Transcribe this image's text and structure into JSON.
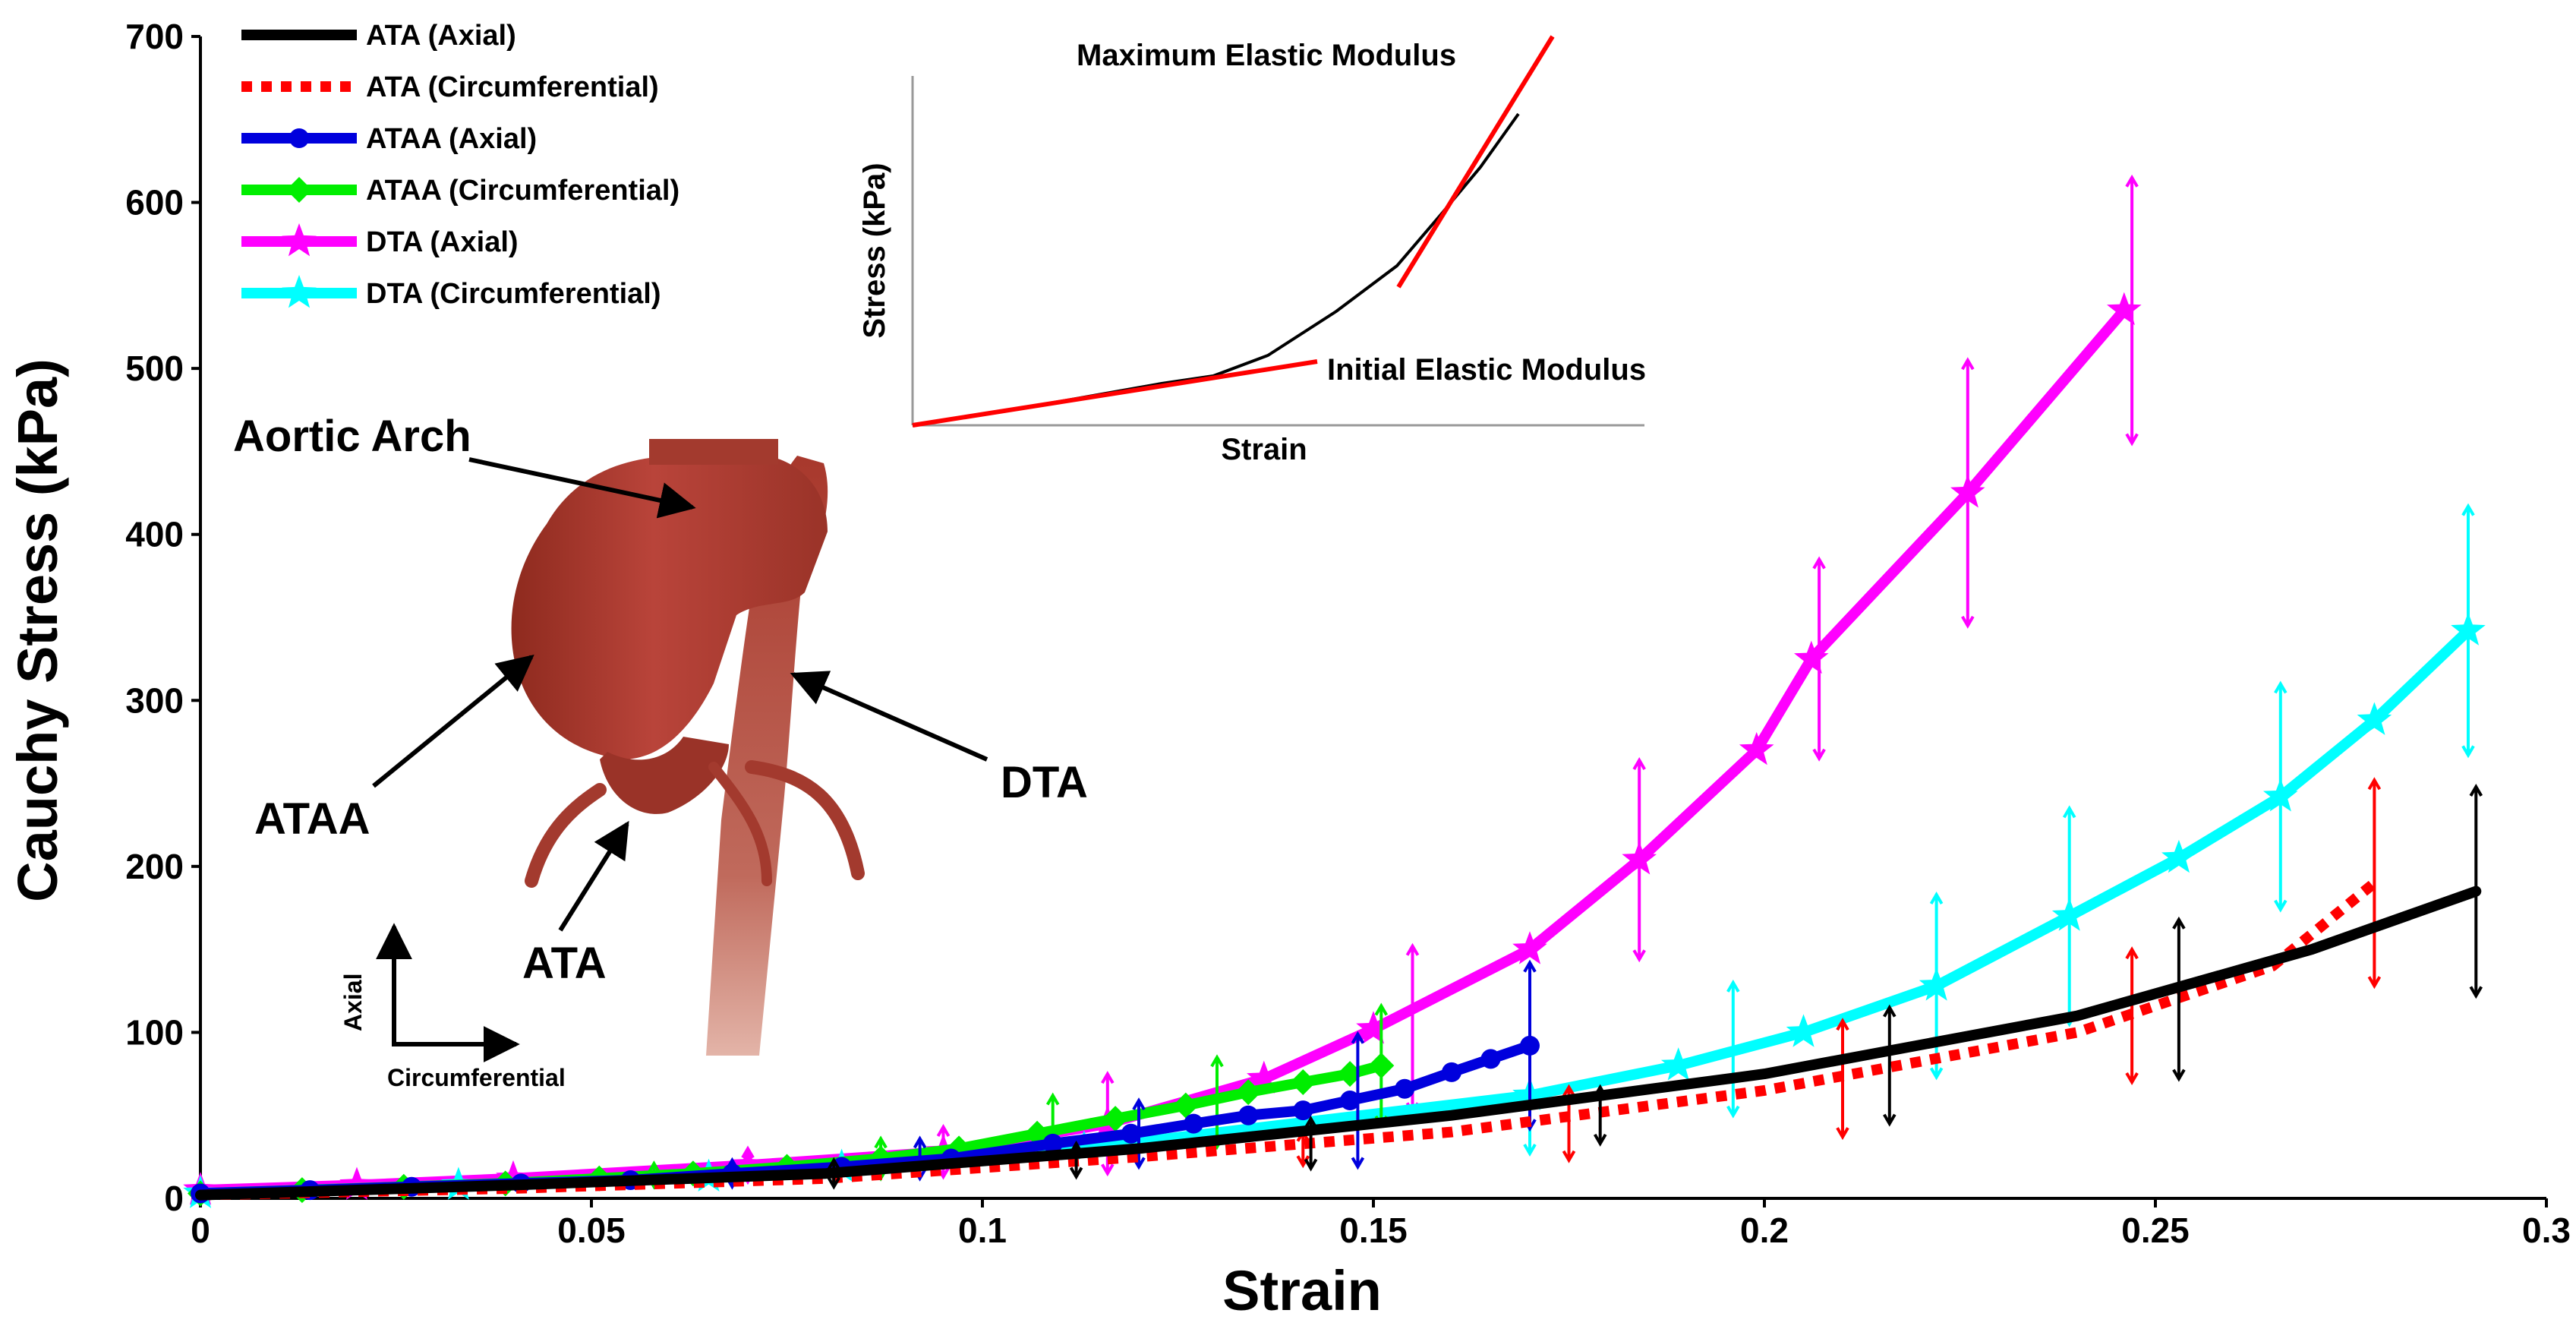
{
  "chart_data": {
    "type": "line",
    "xlabel": "Strain",
    "ylabel": "Cauchy Stress (kPa)",
    "xlim": [
      0,
      0.3
    ],
    "ylim": [
      0,
      700
    ],
    "x_ticks": [
      "0",
      "0.05",
      "0.1",
      "0.15",
      "0.2",
      "0.25",
      "0.3"
    ],
    "y_ticks": [
      "0",
      "100",
      "200",
      "300",
      "400",
      "500",
      "600",
      "700"
    ],
    "legend_position": "top-left",
    "series": [
      {
        "name": "ATA (Axial)",
        "color": "#000000",
        "style": "solid",
        "marker": "none",
        "x": [
          0,
          0.04,
          0.08,
          0.12,
          0.16,
          0.2,
          0.24,
          0.27,
          0.291
        ],
        "y": [
          2,
          8,
          15,
          30,
          50,
          75,
          110,
          150,
          185
        ],
        "error_bars": [
          {
            "x": 0.081,
            "y": 15,
            "err": 8
          },
          {
            "x": 0.112,
            "y": 23,
            "err": 10
          },
          {
            "x": 0.142,
            "y": 33,
            "err": 15
          },
          {
            "x": 0.179,
            "y": 50,
            "err": 17
          },
          {
            "x": 0.216,
            "y": 80,
            "err": 35
          },
          {
            "x": 0.253,
            "y": 120,
            "err": 48
          },
          {
            "x": 0.291,
            "y": 185,
            "err": 63
          }
        ]
      },
      {
        "name": "ATA (Circumferential)",
        "color": "#ff0000",
        "style": "dotted",
        "marker": "none",
        "x": [
          0,
          0.04,
          0.08,
          0.12,
          0.16,
          0.2,
          0.24,
          0.265,
          0.278
        ],
        "y": [
          2,
          6,
          12,
          25,
          40,
          65,
          100,
          140,
          190
        ],
        "error_bars": [
          {
            "x": 0.141,
            "y": 30,
            "err": 10
          },
          {
            "x": 0.175,
            "y": 45,
            "err": 22
          },
          {
            "x": 0.21,
            "y": 72,
            "err": 35
          },
          {
            "x": 0.247,
            "y": 110,
            "err": 40
          },
          {
            "x": 0.278,
            "y": 190,
            "err": 62
          }
        ]
      },
      {
        "name": "ATAA (Axial)",
        "color": "#0000dd",
        "style": "solid",
        "marker": "circle",
        "x": [
          0,
          0.014,
          0.027,
          0.041,
          0.055,
          0.068,
          0.082,
          0.096,
          0.109,
          0.119,
          0.127,
          0.134,
          0.141,
          0.147,
          0.154,
          0.16,
          0.165,
          0.17
        ],
        "y": [
          3,
          5,
          7,
          9,
          11,
          15,
          19,
          24,
          33,
          39,
          45,
          50,
          53,
          59,
          66,
          76,
          84,
          92
        ],
        "error_bars": [
          {
            "x": 0.068,
            "y": 15,
            "err": 8
          },
          {
            "x": 0.092,
            "y": 24,
            "err": 12
          },
          {
            "x": 0.12,
            "y": 39,
            "err": 20
          },
          {
            "x": 0.148,
            "y": 59,
            "err": 40
          },
          {
            "x": 0.17,
            "y": 92,
            "err": 50
          }
        ]
      },
      {
        "name": "ATAA (Circumferential)",
        "color": "#00ee00",
        "style": "solid",
        "marker": "diamond",
        "x": [
          0,
          0.013,
          0.026,
          0.039,
          0.051,
          0.063,
          0.075,
          0.087,
          0.097,
          0.107,
          0.117,
          0.126,
          0.134,
          0.141,
          0.147,
          0.151
        ],
        "y": [
          3,
          5,
          7,
          9,
          12,
          15,
          19,
          24,
          30,
          39,
          48,
          56,
          64,
          70,
          75,
          80
        ],
        "error_bars": [
          {
            "x": 0.058,
            "y": 14,
            "err": 7
          },
          {
            "x": 0.087,
            "y": 24,
            "err": 12
          },
          {
            "x": 0.109,
            "y": 42,
            "err": 20
          },
          {
            "x": 0.13,
            "y": 58,
            "err": 27
          },
          {
            "x": 0.151,
            "y": 80,
            "err": 36
          }
        ]
      },
      {
        "name": "DTA (Axial)",
        "color": "#ff00ff",
        "style": "solid",
        "marker": "star",
        "x": [
          0,
          0.02,
          0.04,
          0.07,
          0.095,
          0.116,
          0.136,
          0.15,
          0.17,
          0.184,
          0.199,
          0.206,
          0.226,
          0.246
        ],
        "y": [
          5,
          8,
          12,
          20,
          28,
          45,
          72,
          102,
          150,
          204,
          270,
          325,
          425,
          535
        ],
        "error_bars": [
          {
            "x": 0.07,
            "y": 20,
            "err": 10
          },
          {
            "x": 0.095,
            "y": 28,
            "err": 15
          },
          {
            "x": 0.116,
            "y": 45,
            "err": 30
          },
          {
            "x": 0.155,
            "y": 102,
            "err": 50
          },
          {
            "x": 0.184,
            "y": 204,
            "err": 60
          },
          {
            "x": 0.207,
            "y": 325,
            "err": 60
          },
          {
            "x": 0.226,
            "y": 425,
            "err": 80
          },
          {
            "x": 0.247,
            "y": 535,
            "err": 80
          }
        ]
      },
      {
        "name": "DTA (Circumferential)",
        "color": "#00ffff",
        "style": "solid",
        "marker": "star",
        "x": [
          0,
          0.033,
          0.065,
          0.082,
          0.113,
          0.17,
          0.189,
          0.205,
          0.222,
          0.239,
          0.253,
          0.266,
          0.278,
          0.29
        ],
        "y": [
          3,
          8,
          13,
          19,
          30,
          62,
          80,
          100,
          128,
          170,
          205,
          242,
          288,
          342
        ],
        "error_bars": [
          {
            "x": 0.17,
            "y": 62,
            "err": 35
          },
          {
            "x": 0.196,
            "y": 90,
            "err": 40
          },
          {
            "x": 0.222,
            "y": 128,
            "err": 55
          },
          {
            "x": 0.239,
            "y": 170,
            "err": 65
          },
          {
            "x": 0.266,
            "y": 242,
            "err": 68
          },
          {
            "x": 0.29,
            "y": 342,
            "err": 75
          }
        ]
      }
    ],
    "inset": {
      "xlabel": "Strain",
      "ylabel": "Stress (kPa)",
      "max_label": "Maximum Elastic Modulus",
      "init_label": "Initial Elastic Modulus"
    },
    "annotations": {
      "aortic_arch": "Aortic Arch",
      "ataa": "ATAA",
      "dta": "DTA",
      "ata": "ATA",
      "axial": "Axial",
      "circumferential": "Circumferential"
    }
  }
}
